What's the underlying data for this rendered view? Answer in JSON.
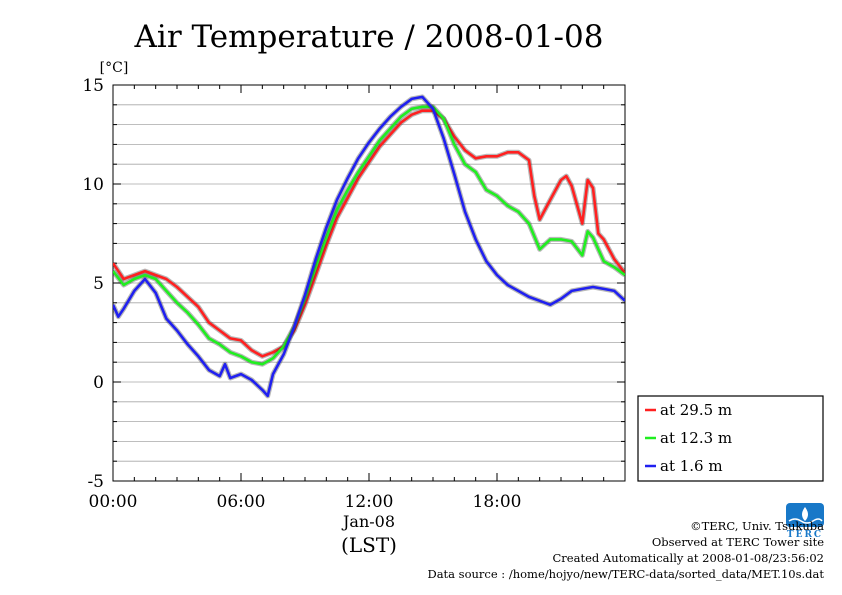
{
  "chart_data": {
    "type": "line",
    "title": "Air Temperature / 2008-01-08",
    "ylabel": "[°C]",
    "xlabel": "(LST)",
    "x_date_label": "Jan-08",
    "ylim": [
      -5,
      15
    ],
    "yticks": [
      -5,
      0,
      5,
      10,
      15
    ],
    "xlim": [
      "00:00",
      "24:00"
    ],
    "xticks": [
      "00:00",
      "06:00",
      "12:00",
      "18:00"
    ],
    "grid": true,
    "legend_position": "lower-right outside",
    "series": [
      {
        "name": "at 29.5 m",
        "color": "#ff2020",
        "points": [
          [
            "00:00",
            6.0
          ],
          [
            "00:30",
            5.2
          ],
          [
            "01:00",
            5.4
          ],
          [
            "01:30",
            5.6
          ],
          [
            "02:00",
            5.4
          ],
          [
            "02:30",
            5.2
          ],
          [
            "03:00",
            4.8
          ],
          [
            "03:30",
            4.3
          ],
          [
            "04:00",
            3.8
          ],
          [
            "04:30",
            3.0
          ],
          [
            "05:00",
            2.6
          ],
          [
            "05:30",
            2.2
          ],
          [
            "06:00",
            2.1
          ],
          [
            "06:30",
            1.6
          ],
          [
            "07:00",
            1.3
          ],
          [
            "07:30",
            1.5
          ],
          [
            "08:00",
            1.8
          ],
          [
            "08:30",
            2.6
          ],
          [
            "09:00",
            3.9
          ],
          [
            "09:30",
            5.4
          ],
          [
            "10:00",
            6.9
          ],
          [
            "10:30",
            8.3
          ],
          [
            "11:00",
            9.3
          ],
          [
            "11:30",
            10.3
          ],
          [
            "12:00",
            11.1
          ],
          [
            "12:30",
            11.9
          ],
          [
            "13:00",
            12.5
          ],
          [
            "13:30",
            13.1
          ],
          [
            "14:00",
            13.5
          ],
          [
            "14:30",
            13.7
          ],
          [
            "15:00",
            13.7
          ],
          [
            "15:30",
            13.3
          ],
          [
            "16:00",
            12.4
          ],
          [
            "16:30",
            11.7
          ],
          [
            "17:00",
            11.3
          ],
          [
            "17:30",
            11.4
          ],
          [
            "18:00",
            11.4
          ],
          [
            "18:30",
            11.6
          ],
          [
            "19:00",
            11.6
          ],
          [
            "19:30",
            11.2
          ],
          [
            "19:45",
            9.4
          ],
          [
            "20:00",
            8.2
          ],
          [
            "20:30",
            9.2
          ],
          [
            "21:00",
            10.2
          ],
          [
            "21:15",
            10.4
          ],
          [
            "21:30",
            9.9
          ],
          [
            "22:00",
            8.0
          ],
          [
            "22:15",
            10.2
          ],
          [
            "22:30",
            9.8
          ],
          [
            "22:45",
            7.5
          ],
          [
            "23:00",
            7.2
          ],
          [
            "23:30",
            6.2
          ],
          [
            "24:00",
            5.5
          ]
        ]
      },
      {
        "name": "at 12.3 m",
        "color": "#20ee20",
        "points": [
          [
            "00:00",
            5.6
          ],
          [
            "00:30",
            4.9
          ],
          [
            "01:00",
            5.2
          ],
          [
            "01:30",
            5.4
          ],
          [
            "02:00",
            5.2
          ],
          [
            "02:30",
            4.6
          ],
          [
            "03:00",
            4.0
          ],
          [
            "03:30",
            3.5
          ],
          [
            "04:00",
            2.9
          ],
          [
            "04:30",
            2.2
          ],
          [
            "05:00",
            1.9
          ],
          [
            "05:30",
            1.5
          ],
          [
            "06:00",
            1.3
          ],
          [
            "06:30",
            1.0
          ],
          [
            "07:00",
            0.9
          ],
          [
            "07:30",
            1.2
          ],
          [
            "08:00",
            1.8
          ],
          [
            "08:30",
            2.8
          ],
          [
            "09:00",
            4.2
          ],
          [
            "09:30",
            5.8
          ],
          [
            "10:00",
            7.3
          ],
          [
            "10:30",
            8.7
          ],
          [
            "11:00",
            9.7
          ],
          [
            "11:30",
            10.6
          ],
          [
            "12:00",
            11.4
          ],
          [
            "12:30",
            12.2
          ],
          [
            "13:00",
            12.8
          ],
          [
            "13:30",
            13.4
          ],
          [
            "14:00",
            13.8
          ],
          [
            "14:30",
            13.9
          ],
          [
            "15:00",
            13.9
          ],
          [
            "15:30",
            13.3
          ],
          [
            "16:00",
            12.0
          ],
          [
            "16:30",
            11.0
          ],
          [
            "17:00",
            10.6
          ],
          [
            "17:30",
            9.7
          ],
          [
            "18:00",
            9.4
          ],
          [
            "18:30",
            8.9
          ],
          [
            "19:00",
            8.6
          ],
          [
            "19:30",
            8.0
          ],
          [
            "20:00",
            6.7
          ],
          [
            "20:30",
            7.2
          ],
          [
            "21:00",
            7.2
          ],
          [
            "21:30",
            7.1
          ],
          [
            "22:00",
            6.4
          ],
          [
            "22:15",
            7.6
          ],
          [
            "22:30",
            7.3
          ],
          [
            "23:00",
            6.1
          ],
          [
            "23:30",
            5.8
          ],
          [
            "24:00",
            5.4
          ]
        ]
      },
      {
        "name": "at 1.6 m",
        "color": "#2020f0",
        "points": [
          [
            "00:00",
            3.9
          ],
          [
            "00:15",
            3.3
          ],
          [
            "00:30",
            3.7
          ],
          [
            "01:00",
            4.6
          ],
          [
            "01:30",
            5.2
          ],
          [
            "02:00",
            4.5
          ],
          [
            "02:30",
            3.2
          ],
          [
            "03:00",
            2.6
          ],
          [
            "03:30",
            1.9
          ],
          [
            "04:00",
            1.3
          ],
          [
            "04:30",
            0.6
          ],
          [
            "05:00",
            0.3
          ],
          [
            "05:15",
            0.9
          ],
          [
            "05:30",
            0.2
          ],
          [
            "06:00",
            0.4
          ],
          [
            "06:30",
            0.1
          ],
          [
            "07:00",
            -0.4
          ],
          [
            "07:15",
            -0.7
          ],
          [
            "07:30",
            0.4
          ],
          [
            "08:00",
            1.4
          ],
          [
            "08:30",
            2.8
          ],
          [
            "09:00",
            4.4
          ],
          [
            "09:30",
            6.2
          ],
          [
            "10:00",
            7.8
          ],
          [
            "10:30",
            9.2
          ],
          [
            "11:00",
            10.3
          ],
          [
            "11:30",
            11.3
          ],
          [
            "12:00",
            12.1
          ],
          [
            "12:30",
            12.8
          ],
          [
            "13:00",
            13.4
          ],
          [
            "13:30",
            13.9
          ],
          [
            "14:00",
            14.3
          ],
          [
            "14:30",
            14.4
          ],
          [
            "15:00",
            13.8
          ],
          [
            "15:30",
            12.3
          ],
          [
            "16:00",
            10.5
          ],
          [
            "16:30",
            8.6
          ],
          [
            "17:00",
            7.2
          ],
          [
            "17:30",
            6.1
          ],
          [
            "18:00",
            5.4
          ],
          [
            "18:30",
            4.9
          ],
          [
            "19:00",
            4.6
          ],
          [
            "19:30",
            4.3
          ],
          [
            "20:00",
            4.1
          ],
          [
            "20:30",
            3.9
          ],
          [
            "21:00",
            4.2
          ],
          [
            "21:30",
            4.6
          ],
          [
            "22:00",
            4.7
          ],
          [
            "22:30",
            4.8
          ],
          [
            "23:00",
            4.7
          ],
          [
            "23:30",
            4.6
          ],
          [
            "24:00",
            4.1
          ]
        ]
      }
    ]
  },
  "credits": {
    "copyright": "©TERC, Univ. Tsukuba",
    "observed": "Observed at TERC Tower site",
    "created": "Created Automatically at 2008-01-08/23:56:02",
    "source": "Data source : /home/hojyo/new/TERC-data/sorted_data/MET.10s.dat"
  },
  "logo": {
    "text": "TERC",
    "color": "#1878c8"
  }
}
